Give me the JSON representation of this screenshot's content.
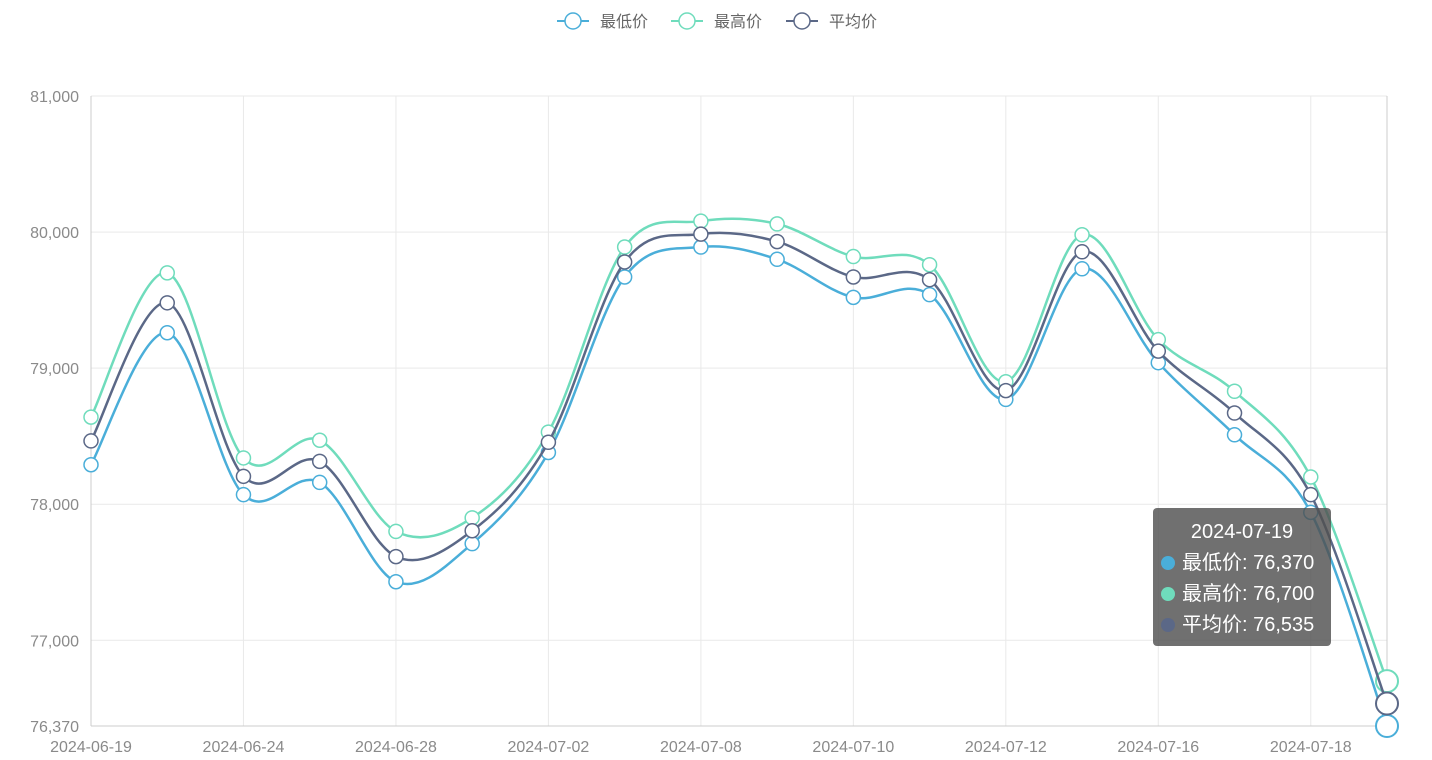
{
  "chart_data": {
    "type": "line",
    "title": "",
    "xlabel": "",
    "ylabel": "",
    "x": [
      "2024-06-19",
      "2024-06-21",
      "2024-06-24",
      "2024-06-26",
      "2024-06-28",
      "2024-07-01",
      "2024-07-02",
      "2024-07-04",
      "2024-07-08",
      "2024-07-09",
      "2024-07-10",
      "2024-07-11",
      "2024-07-12",
      "2024-07-15",
      "2024-07-16",
      "2024-07-17",
      "2024-07-18",
      "2024-07-19"
    ],
    "x_tick_labels": [
      "2024-06-19",
      "2024-06-24",
      "2024-06-28",
      "2024-07-02",
      "2024-07-08",
      "2024-07-10",
      "2024-07-12",
      "2024-07-16",
      "2024-07-18"
    ],
    "y_tick_labels": [
      "81,000",
      "80,000",
      "79,000",
      "78,000",
      "77,000",
      "76,370"
    ],
    "y_ticks": [
      81000,
      80000,
      79000,
      78000,
      77000,
      76370
    ],
    "ylim": [
      76370,
      81000
    ],
    "grid": true,
    "legend_position": "top-center",
    "smooth": true,
    "series": [
      {
        "name": "最低价",
        "color": "#4aaed9",
        "values": [
          78290,
          79260,
          78070,
          78160,
          77430,
          77710,
          78380,
          79670,
          79890,
          79800,
          79520,
          79540,
          78770,
          79730,
          79040,
          78510,
          77940,
          76370
        ]
      },
      {
        "name": "最高价",
        "color": "#6fdcbc",
        "values": [
          78640,
          79700,
          78340,
          78470,
          77800,
          77900,
          78530,
          79890,
          80080,
          80060,
          79820,
          79760,
          78900,
          79980,
          79210,
          78830,
          78200,
          76700
        ]
      },
      {
        "name": "平均价",
        "color": "#5b6887",
        "values": [
          78465,
          79480,
          78205,
          78315,
          77615,
          77805,
          78455,
          79780,
          79985,
          79930,
          79670,
          79650,
          78835,
          79855,
          79125,
          78670,
          78070,
          76535
        ]
      }
    ]
  },
  "tooltip": {
    "title": "2024-07-19",
    "rows": [
      {
        "label": "最低价: 76,370",
        "color": "#4aaed9"
      },
      {
        "label": "最高价: 76,700",
        "color": "#6fdcbc"
      },
      {
        "label": "平均价: 76,535",
        "color": "#5b6887"
      }
    ]
  }
}
